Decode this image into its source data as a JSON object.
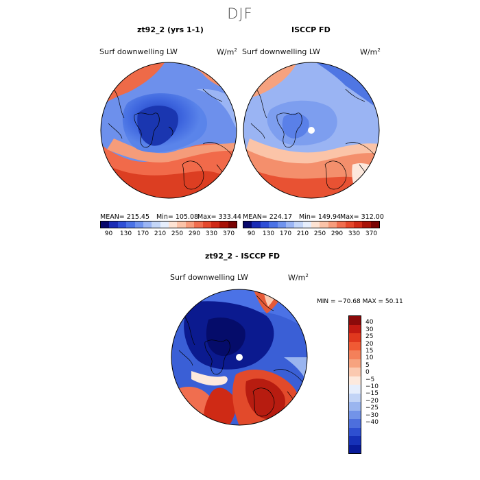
{
  "figure": {
    "season": "DJF",
    "panel_left": {
      "title": "zt92_2 (yrs 1-1)",
      "variable": "Surf downwelling LW",
      "unit": "W/m",
      "unit_exp": "2",
      "stats": {
        "mean": "MEAN= 215.45",
        "min": "Min= 105.08",
        "max": "Max= 333.44"
      }
    },
    "panel_right": {
      "title": "ISCCP FD",
      "variable": "Surf downwelling LW",
      "unit": "W/m",
      "unit_exp": "2",
      "stats": {
        "mean": "MEAN= 224.17",
        "min": "Min= 149.94",
        "max": "Max= 312.00"
      }
    },
    "panel_diff": {
      "title": "zt92_2 - ISCCP FD",
      "variable": "Surf downwelling LW",
      "unit": "W/m",
      "unit_exp": "2",
      "minmax": "MIN = −70.68 MAX =  50.11"
    },
    "colorbar_abs": {
      "ticks": [
        "90",
        "130",
        "170",
        "210",
        "250",
        "290",
        "330",
        "370"
      ],
      "colors": [
        "#08086b",
        "#1a2cb5",
        "#2f4fd6",
        "#4b72e6",
        "#7093ee",
        "#9bb5f4",
        "#c4d6f8",
        "#e6eefc",
        "#fde3d3",
        "#fbc3a8",
        "#f79c7c",
        "#f06e4f",
        "#e5482c",
        "#d02a17",
        "#a81208",
        "#7a0404"
      ]
    },
    "colorbar_diff": {
      "ticks": [
        "40",
        "30",
        "25",
        "20",
        "15",
        "10",
        "5",
        "0",
        "−5",
        "−10",
        "−15",
        "−20",
        "−25",
        "−30",
        "−40"
      ],
      "colors": [
        "#8b0a0a",
        "#c21a12",
        "#e0381e",
        "#f05a34",
        "#f4805a",
        "#f7a37f",
        "#fbc9b0",
        "#fde9dd",
        "#e6eefc",
        "#c2d4f6",
        "#9ab5ef",
        "#7293e8",
        "#4d6fdd",
        "#2e4fd0",
        "#1631b8",
        "#081a99"
      ]
    }
  },
  "chart_data": [
    {
      "type": "heatmap",
      "title": "zt92_2 (yrs 1-1)",
      "variable": "Surf downwelling LW",
      "units": "W/m2",
      "projection": "north polar stereographic",
      "mean": 215.45,
      "min": 105.08,
      "max": 333.44,
      "colorbar_range": [
        90,
        370
      ]
    },
    {
      "type": "heatmap",
      "title": "ISCCP FD",
      "variable": "Surf downwelling LW",
      "units": "W/m2",
      "projection": "north polar stereographic",
      "mean": 224.17,
      "min": 149.94,
      "max": 312.0,
      "colorbar_range": [
        90,
        370
      ]
    },
    {
      "type": "heatmap",
      "title": "zt92_2 - ISCCP FD",
      "variable": "Surf downwelling LW",
      "units": "W/m2",
      "projection": "north polar stereographic",
      "min": -70.68,
      "max": 50.11,
      "colorbar_range": [
        -40,
        40
      ]
    }
  ]
}
